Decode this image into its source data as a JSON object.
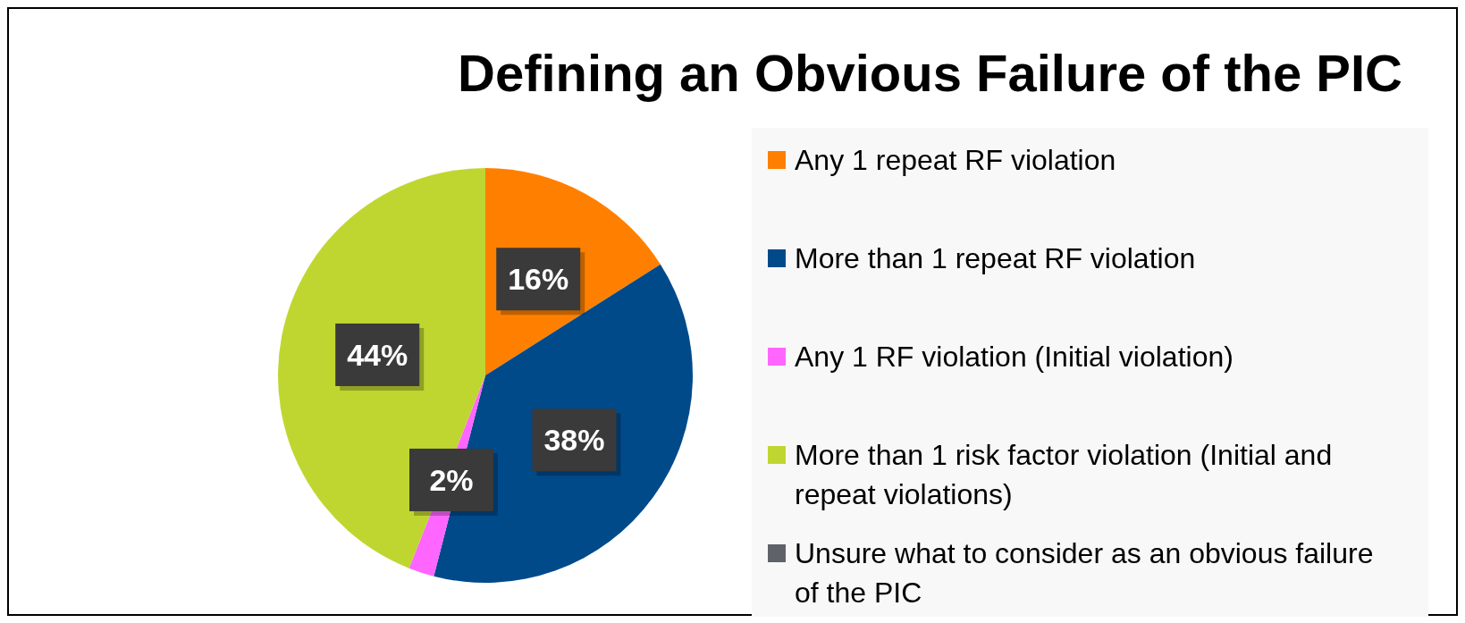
{
  "chart_data": {
    "type": "pie",
    "title": "Defining an Obvious Failure of the PIC",
    "categories": [
      "Any 1 repeat RF violation",
      "More than 1 repeat RF violation",
      "Any 1 RF violation (Initial violation)",
      "More than 1 risk factor violation (Initial and repeat violations)",
      "Unsure what to consider as an obvious failure of the PIC"
    ],
    "values": [
      16,
      38,
      2,
      44,
      0
    ],
    "value_labels": [
      "16%",
      "38%",
      "2%",
      "44%",
      null
    ],
    "colors": [
      "#ff8000",
      "#004a8a",
      "#ff66ff",
      "#c0d630",
      "#5f6369"
    ],
    "legend": "right"
  }
}
